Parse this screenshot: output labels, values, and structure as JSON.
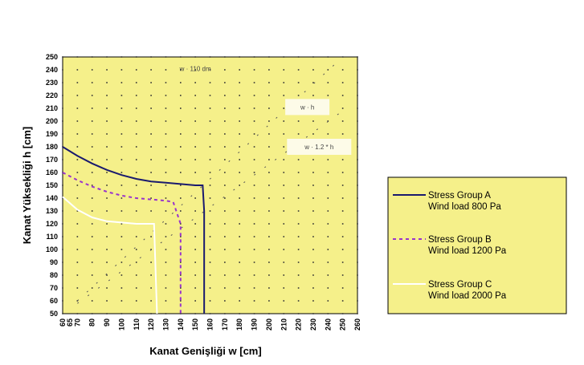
{
  "chart_data": {
    "type": "line",
    "title": "",
    "xlabel": "Kanat Genişliği   w  [cm]",
    "ylabel": "Kanat Yüksekliği   h  [cm]",
    "xlim": [
      60,
      260
    ],
    "ylim": [
      50,
      250
    ],
    "x_ticks": [
      60,
      65,
      70,
      80,
      90,
      100,
      110,
      120,
      130,
      140,
      150,
      160,
      170,
      180,
      190,
      200,
      210,
      220,
      230,
      240,
      250,
      260
    ],
    "x_tick_labels": [
      "60",
      "65",
      "70",
      "80",
      "90",
      "100",
      "110",
      "120",
      "130",
      "140",
      "150",
      "160",
      "170",
      "180",
      "190",
      "200",
      "210",
      "220",
      "230",
      "240",
      "250",
      "260"
    ],
    "y_ticks": [
      50,
      60,
      70,
      80,
      90,
      100,
      110,
      120,
      130,
      140,
      150,
      160,
      170,
      180,
      190,
      200,
      210,
      220,
      230,
      240,
      250
    ],
    "grid": "dotted",
    "plot_background": "#f5f08a",
    "annotations": [
      {
        "text": "w  ·  110 dm",
        "x": 150,
        "y": 241,
        "boxed": false
      },
      {
        "text": "w   ·   h",
        "x": 226,
        "y": 211,
        "boxed": true
      },
      {
        "text": "w   ·  1.2 * h",
        "x": 234,
        "y": 180,
        "boxed": true
      }
    ],
    "reference_lines": [
      {
        "name": "w = h",
        "x": [
          70,
          250
        ],
        "y": [
          60,
          250
        ],
        "color": "#555555"
      },
      {
        "name": "w = 1.2 * h",
        "x": [
          70,
          250
        ],
        "y": [
          58,
          208
        ],
        "color": "#555555"
      }
    ],
    "series": [
      {
        "name": "Stress Group A",
        "sub": "Wind load        800 Pa",
        "color": "#1a1a6e",
        "style": "solid",
        "x": [
          60,
          70,
          80,
          90,
          100,
          110,
          120,
          130,
          140,
          150,
          155,
          156,
          156
        ],
        "y": [
          180,
          173,
          167,
          162,
          158,
          155,
          153,
          152,
          151,
          150,
          150,
          130,
          50
        ]
      },
      {
        "name": "Stress Group B",
        "sub": "Wind load        1200 Pa",
        "color": "#9933cc",
        "style": "dashed",
        "x": [
          60,
          70,
          80,
          90,
          100,
          110,
          120,
          130,
          135,
          140,
          140
        ],
        "y": [
          160,
          154,
          149,
          145,
          142,
          140,
          139,
          138,
          137,
          120,
          50
        ]
      },
      {
        "name": "Stress Group C",
        "sub": "Wind load      2000 Pa",
        "color": "#ffffff",
        "style": "solid",
        "x": [
          60,
          70,
          80,
          90,
          100,
          110,
          118,
          122,
          124
        ],
        "y": [
          141,
          131,
          125,
          122,
          121,
          120,
          120,
          120,
          50
        ]
      }
    ],
    "legend_position": "right"
  }
}
